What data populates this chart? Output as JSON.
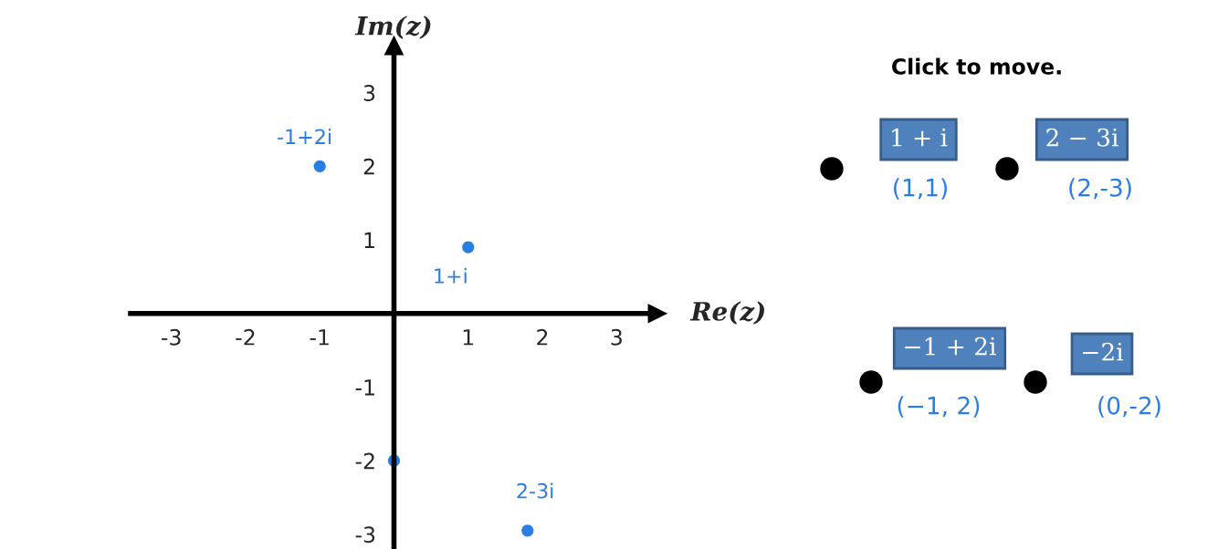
{
  "chart_data": {
    "type": "scatter",
    "x": [
      -1,
      1,
      0,
      1.8
    ],
    "values": [
      2,
      0.9,
      -2,
      -2.95
    ],
    "color": "#2a7de1",
    "marker": "circle",
    "xlabel": "Re(z)",
    "ylabel": "Im(z)",
    "xlim": [
      -3.55,
      3.55
    ],
    "ylim": [
      -3.2,
      3.64
    ],
    "xticks": [
      -3,
      -2,
      -1,
      1,
      2,
      3
    ],
    "yticks": [
      -3,
      -2,
      -1,
      1,
      2,
      3
    ],
    "annotations": [
      {
        "text": "-1+2i",
        "x": -1,
        "y": 2
      },
      {
        "text": "1+i",
        "x": 1,
        "y": 0.9
      },
      {
        "text": "2-3i",
        "x": 1.8,
        "y": -2.95
      },
      "Click to move.",
      "1 + i",
      "(1,1)",
      "2 − 3i",
      "(2,-3)",
      "−1 + 2i",
      "(−1, 2)",
      "−2i",
      "(0,-2)"
    ]
  }
}
